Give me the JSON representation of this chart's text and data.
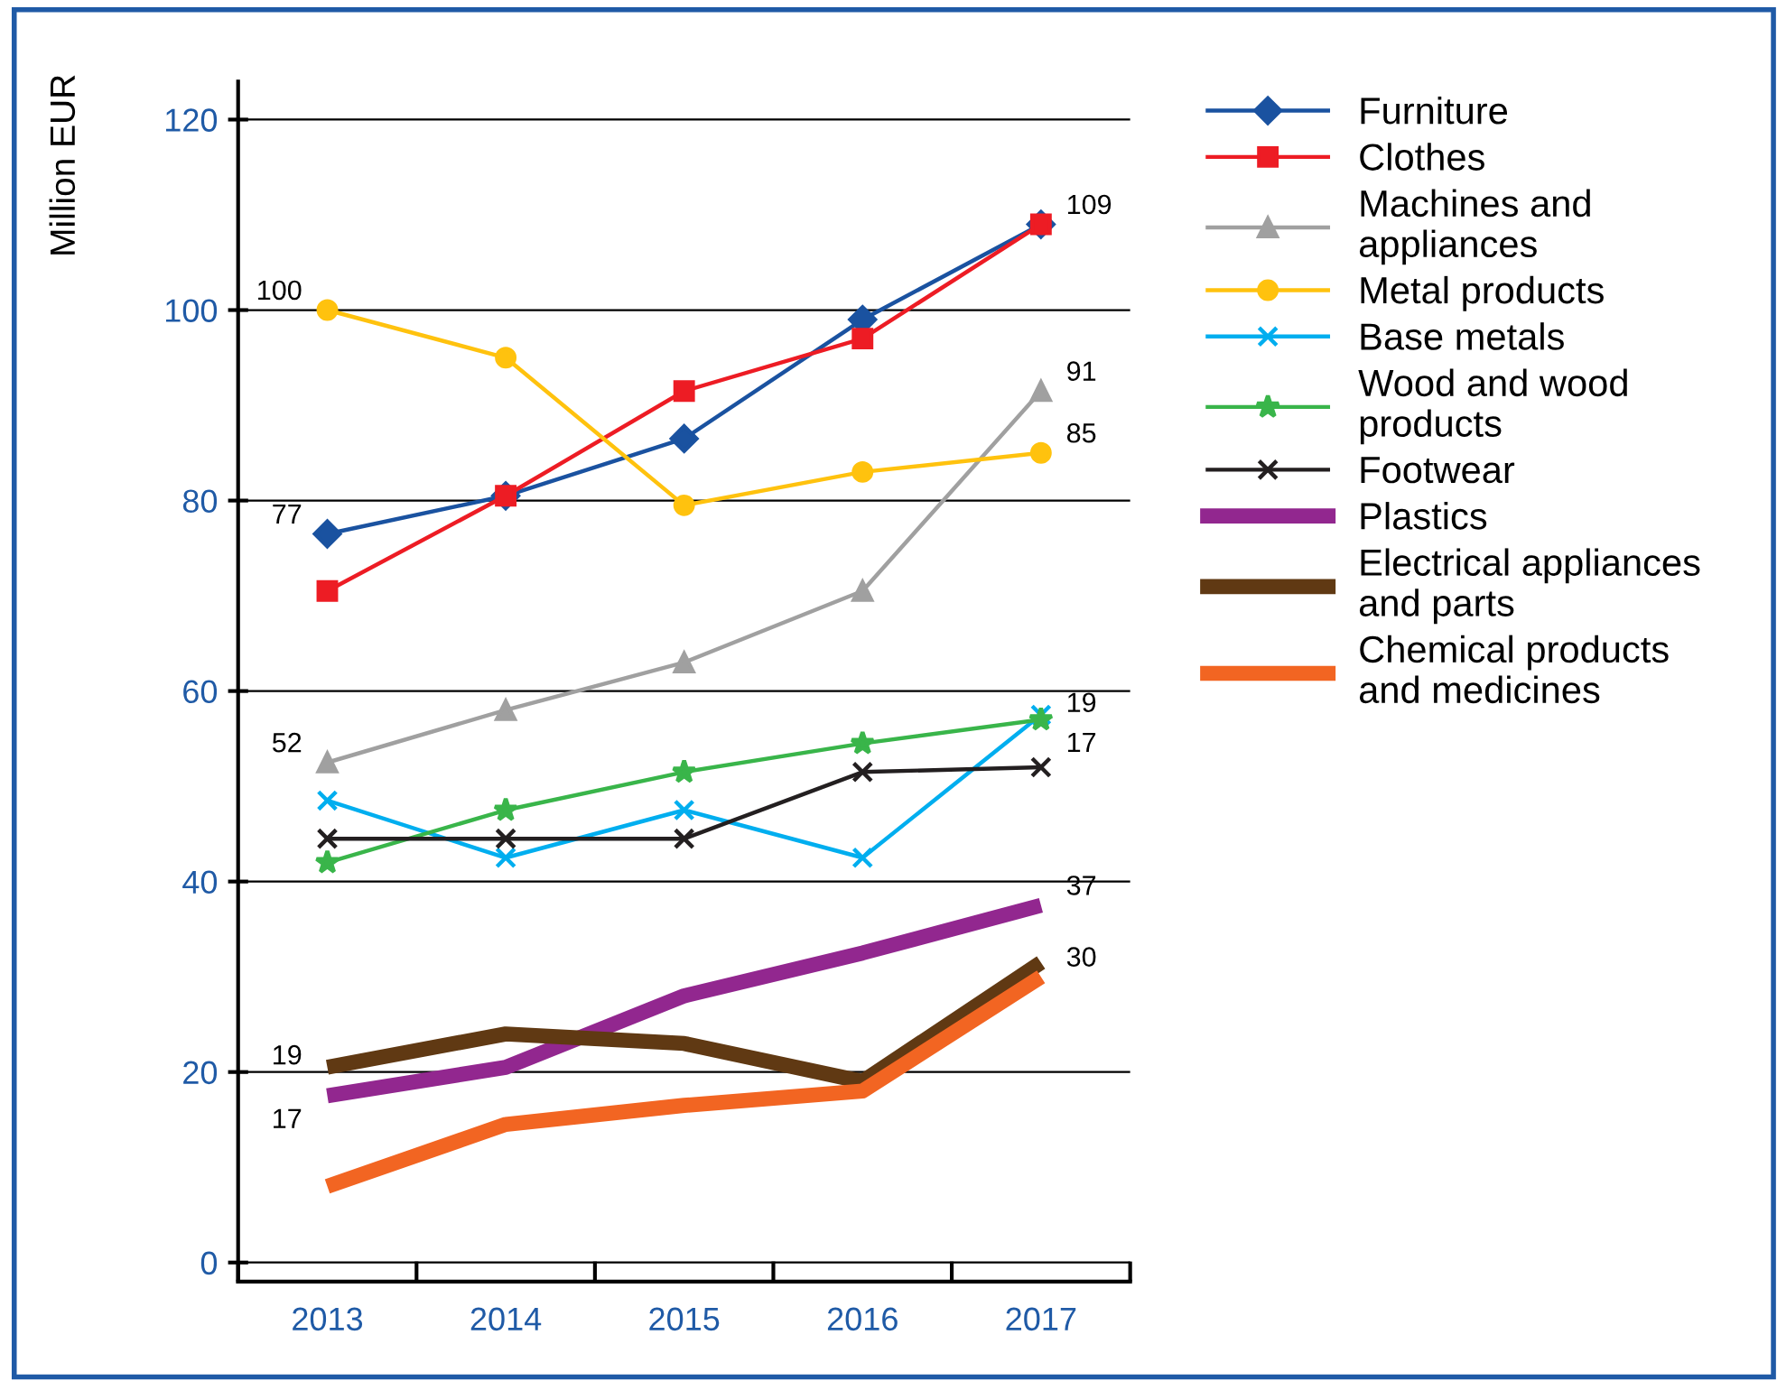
{
  "chart_data": {
    "type": "line",
    "ylabel": "Million EUR",
    "categories": [
      "2013",
      "2014",
      "2015",
      "2016",
      "2017"
    ],
    "ylim": [
      -2,
      124
    ],
    "yticks": [
      0,
      20,
      40,
      60,
      80,
      100,
      120
    ],
    "grid": "y",
    "legend": "right",
    "series": [
      {
        "name": "Furniture",
        "color": "#1a52a0",
        "marker": "diamond",
        "values": [
          76.5,
          80.5,
          86.5,
          99,
          109
        ]
      },
      {
        "name": "Clothes",
        "color": "#ed1c24",
        "marker": "square",
        "values": [
          70.5,
          80.5,
          91.5,
          97,
          109
        ]
      },
      {
        "name": "Machines and\nappliances",
        "color": "#a0a0a0",
        "marker": "triangle",
        "values": [
          52.5,
          58,
          63,
          70.5,
          91.5
        ]
      },
      {
        "name": "Metal products",
        "color": "#ffc20e",
        "marker": "circle",
        "values": [
          100,
          95,
          79.5,
          83,
          85
        ]
      },
      {
        "name": "Base metals",
        "color": "#00aeef",
        "marker": "cross",
        "values": [
          48.5,
          42.5,
          47.5,
          42.5,
          57.5
        ]
      },
      {
        "name": "Wood and wood\nproducts",
        "color": "#39b54a",
        "marker": "star",
        "values": [
          42,
          47.5,
          51.5,
          54.5,
          57
        ]
      },
      {
        "name": "Footwear",
        "color": "#231f20",
        "marker": "cross",
        "values": [
          44.5,
          44.5,
          44.5,
          51.5,
          52
        ]
      },
      {
        "name": "Plastics",
        "color": "#92278f",
        "marker": "none",
        "values": [
          17.5,
          20.5,
          28,
          32.5,
          37.5
        ]
      },
      {
        "name": "Electrical appliances\nand parts",
        "color": "#603913",
        "marker": "none",
        "values": [
          20.5,
          24,
          23,
          19,
          31.5
        ]
      },
      {
        "name": "Chemical products\nand medicines",
        "color": "#f26522",
        "marker": "none",
        "values": [
          8,
          14.5,
          16.5,
          18,
          30
        ]
      }
    ],
    "annotations": [
      {
        "text": "100",
        "x": "2013",
        "y": 100
      },
      {
        "text": "77",
        "x": "2013",
        "y": 76.5
      },
      {
        "text": "52",
        "x": "2013",
        "y": 52.5
      },
      {
        "text": "19",
        "x": "2013",
        "y": 20.5
      },
      {
        "text": "17",
        "x": "2013",
        "y": 17.5
      },
      {
        "text": "109",
        "x": "2017",
        "y": 109
      },
      {
        "text": "91",
        "x": "2017",
        "y": 91.5
      },
      {
        "text": "85",
        "x": "2017",
        "y": 85
      },
      {
        "text": "19",
        "x": "2017",
        "y": 57.5
      },
      {
        "text": "17",
        "x": "2017",
        "y": 57
      },
      {
        "text": "37",
        "x": "2017",
        "y": 37.5
      },
      {
        "text": "30",
        "x": "2017",
        "y": 30
      }
    ]
  }
}
